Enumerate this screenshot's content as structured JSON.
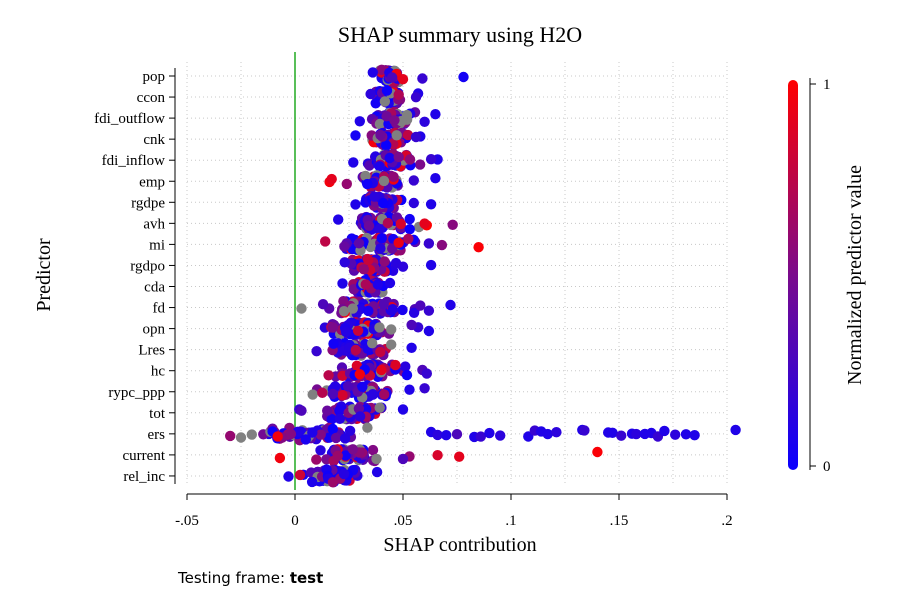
{
  "chart_data": {
    "type": "scatter",
    "title": "SHAP summary using H2O",
    "xlabel": "SHAP contribution",
    "ylabel": "Predictor",
    "xlim": [
      -0.05,
      0.2
    ],
    "x_ticks": [
      -0.05,
      0,
      0.05,
      0.1,
      0.15,
      0.2
    ],
    "x_tick_labels": [
      "-.05",
      "0",
      ".05",
      ".1",
      ".15",
      ".2"
    ],
    "reference_line_x": 0,
    "reference_line_color": "#22aa22",
    "grid": true,
    "predictors": [
      "pop",
      "ccon",
      "fdi_outflow",
      "cnk",
      "fdi_inflow",
      "emp",
      "rgdpe",
      "avh",
      "mi",
      "rgdpo",
      "cda",
      "fd",
      "opn",
      "Lres",
      "hc",
      "rypc_ppp",
      "tot",
      "ers",
      "current",
      "rel_inc"
    ],
    "colorbar": {
      "label": "Normalized predictor value",
      "min": 0,
      "max": 1,
      "tick_labels": [
        "0",
        "1"
      ],
      "low_color": "#0a00ff",
      "high_color": "#ff0000",
      "missing_color": "#808080"
    },
    "series": [
      {
        "predictor": "pop",
        "core": [
          0.038,
          0.05
        ],
        "points": [
          [
            0.078,
            0.05
          ],
          [
            0.059,
            0.2
          ],
          [
            0.047,
            0.95
          ],
          [
            0.05,
            0.9
          ],
          [
            0.036,
            0.1
          ],
          [
            0.045,
            0.3
          ]
        ]
      },
      {
        "predictor": "ccon",
        "core": [
          0.036,
          0.05
        ],
        "points": [
          [
            0.057,
            0.1
          ],
          [
            0.056,
            0.2
          ],
          [
            0.035,
            0.15
          ],
          [
            0.048,
            0.7
          ]
        ]
      },
      {
        "predictor": "fdi_outflow",
        "core": [
          0.034,
          0.058
        ],
        "points": [
          [
            0.065,
            0.1
          ],
          [
            0.06,
            0.15
          ],
          [
            0.03,
            0.1
          ],
          [
            0.046,
            0.5
          ]
        ]
      },
      {
        "predictor": "cnk",
        "core": [
          0.032,
          0.054
        ],
        "points": [
          [
            0.058,
            0.1
          ],
          [
            0.028,
            0.05
          ],
          [
            0.056,
            0.2
          ]
        ]
      },
      {
        "predictor": "fdi_inflow",
        "core": [
          0.029,
          0.06
        ],
        "points": [
          [
            0.066,
            0.1
          ],
          [
            0.063,
            0.2
          ],
          [
            0.027,
            0.1
          ],
          [
            0.048,
            0.5
          ]
        ]
      },
      {
        "predictor": "emp",
        "core": [
          0.028,
          0.052
        ],
        "points": [
          [
            0.016,
            0.95
          ],
          [
            0.017,
            0.9
          ],
          [
            0.065,
            0.1
          ],
          [
            0.024,
            0.6
          ],
          [
            0.055,
            0.2
          ]
        ]
      },
      {
        "predictor": "rgdpe",
        "core": [
          0.03,
          0.051
        ],
        "points": [
          [
            0.063,
            0.1
          ],
          [
            0.055,
            0.15
          ],
          [
            0.028,
            0.1
          ]
        ]
      },
      {
        "predictor": "avh",
        "core": [
          0.022,
          0.059
        ],
        "points": [
          [
            0.061,
            1.0
          ],
          [
            0.073,
            0.55
          ],
          [
            0.06,
            0.9
          ],
          [
            0.02,
            0.1
          ],
          [
            0.049,
            0.85
          ],
          [
            0.043,
            0.7
          ]
        ]
      },
      {
        "predictor": "mi",
        "core": [
          0.015,
          0.063
        ],
        "points": [
          [
            0.085,
            0.98
          ],
          [
            0.068,
            0.55
          ],
          [
            0.014,
            0.75
          ],
          [
            0.048,
            0.92
          ],
          [
            0.062,
            0.2
          ]
        ]
      },
      {
        "predictor": "rgdpo",
        "core": [
          0.024,
          0.048
        ],
        "points": [
          [
            0.063,
            0.1
          ],
          [
            0.05,
            0.15
          ],
          [
            0.023,
            0.15
          ]
        ]
      },
      {
        "predictor": "cda",
        "core": [
          0.024,
          0.044
        ],
        "points": [
          [
            0.044,
            0.1
          ],
          [
            0.022,
            0.1
          ]
        ]
      },
      {
        "predictor": "fd",
        "core": [
          0.009,
          0.06
        ],
        "points": [
          [
            0.003,
            -1
          ],
          [
            0.072,
            0.1
          ],
          [
            0.062,
            0.2
          ],
          [
            0.058,
            0.3
          ],
          [
            0.013,
            0.3
          ]
        ]
      },
      {
        "predictor": "opn",
        "core": [
          0.007,
          0.052
        ],
        "points": [
          [
            0.062,
            0.1
          ],
          [
            0.057,
            0.2
          ],
          [
            0.054,
            0.3
          ]
        ]
      },
      {
        "predictor": "Lres",
        "core": [
          0.011,
          0.05
        ],
        "points": [
          [
            0.054,
            0.1
          ],
          [
            0.01,
            0.2
          ]
        ]
      },
      {
        "predictor": "hc",
        "core": [
          0.01,
          0.056
        ],
        "points": [
          [
            0.059,
            0.3
          ],
          [
            0.061,
            0.2
          ],
          [
            0.03,
            0.95
          ],
          [
            0.04,
            0.9
          ]
        ]
      },
      {
        "predictor": "rypc_ppp",
        "core": [
          0.005,
          0.052
        ],
        "points": [
          [
            0.06,
            0.2
          ],
          [
            0.053,
            0.1
          ]
        ]
      },
      {
        "predictor": "tot",
        "core": [
          0.006,
          0.048
        ],
        "points": [
          [
            0.002,
            0.2
          ],
          [
            0.05,
            0.1
          ],
          [
            0.003,
            0.3
          ]
        ]
      },
      {
        "predictor": "ers",
        "core": [
          -0.03,
          0.05
        ],
        "points": [
          [
            -0.008,
            0.95
          ],
          [
            -0.03,
            0.6
          ],
          [
            -0.02,
            -1
          ],
          [
            -0.025,
            -1
          ],
          [
            0.063,
            0.1
          ],
          [
            0.066,
            0.15
          ],
          [
            0.07,
            0.1
          ],
          [
            0.075,
            0.3
          ],
          [
            0.083,
            0.1
          ],
          [
            0.086,
            0.2
          ],
          [
            0.09,
            0.1
          ],
          [
            0.095,
            0.15
          ],
          [
            0.108,
            0.1
          ],
          [
            0.111,
            0.2
          ],
          [
            0.114,
            0.1
          ],
          [
            0.117,
            0.1
          ],
          [
            0.121,
            0.15
          ],
          [
            0.133,
            0.1
          ],
          [
            0.134,
            0.2
          ],
          [
            0.145,
            0.1
          ],
          [
            0.147,
            0.1
          ],
          [
            0.151,
            0.2
          ],
          [
            0.156,
            0.1
          ],
          [
            0.158,
            0.15
          ],
          [
            0.162,
            0.1
          ],
          [
            0.165,
            0.1
          ],
          [
            0.168,
            0.2
          ],
          [
            0.171,
            0.1
          ],
          [
            0.176,
            0.15
          ],
          [
            0.181,
            0.1
          ],
          [
            0.185,
            0.1
          ],
          [
            0.204,
            0.1
          ]
        ]
      },
      {
        "predictor": "current",
        "core": [
          0.004,
          0.048
        ],
        "points": [
          [
            0.14,
            0.98
          ],
          [
            0.076,
            0.9
          ],
          [
            0.066,
            0.85
          ],
          [
            0.053,
            0.6
          ],
          [
            -0.007,
            0.95
          ],
          [
            0.05,
            0.3
          ]
        ]
      },
      {
        "predictor": "rel_inc",
        "core": [
          -0.002,
          0.038
        ],
        "points": [
          [
            0.038,
            0.1
          ],
          [
            -0.003,
            0.1
          ]
        ]
      }
    ]
  },
  "footer": {
    "label": "Testing frame: ",
    "value": "test"
  }
}
